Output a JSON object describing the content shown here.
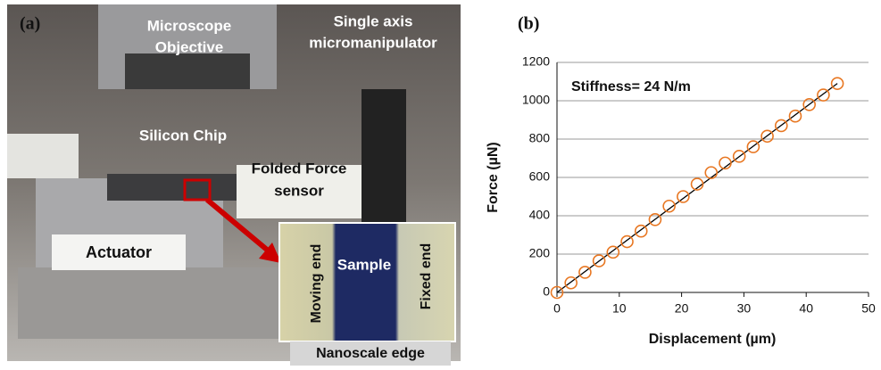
{
  "panel_a": {
    "label": "(a)",
    "microscope_objective": [
      "Microscope",
      "Objective"
    ],
    "micromanipulator": [
      "Single axis",
      "micromanipulator"
    ],
    "silicon_chip": "Silicon Chip",
    "force_sensor": [
      "Folded Force",
      "sensor"
    ],
    "actuator": "Actuator",
    "inset": {
      "moving_end": "Moving end",
      "sample": "Sample",
      "fixed_end": "Fixed end",
      "nanoscale_edge": "Nanoscale edge"
    }
  },
  "chart_data": {
    "type": "scatter",
    "label": "(b)",
    "annotation": "Stiffness= 24 N/m",
    "x_label": "Displacement (µm)",
    "y_label": "Force (µN)",
    "x": [
      0,
      2.25,
      4.5,
      6.75,
      9,
      11.25,
      13.5,
      15.75,
      18,
      20.25,
      22.5,
      24.75,
      27,
      29.25,
      31.5,
      33.75,
      36,
      38.25,
      40.5,
      42.75,
      45
    ],
    "values": [
      0,
      50,
      105,
      165,
      210,
      265,
      320,
      380,
      450,
      500,
      565,
      625,
      675,
      710,
      760,
      815,
      870,
      920,
      980,
      1030,
      1090
    ],
    "color": "#e87722",
    "trendline": {
      "x": [
        0,
        45
      ],
      "values": [
        0,
        1090
      ],
      "color": "#000000"
    },
    "xlim": [
      0,
      50
    ],
    "xticks": [
      0,
      10,
      20,
      30,
      40,
      50
    ],
    "ylim": [
      0,
      1200
    ],
    "yticks": [
      0,
      200,
      400,
      600,
      800,
      1000,
      1200
    ],
    "grid": true
  }
}
